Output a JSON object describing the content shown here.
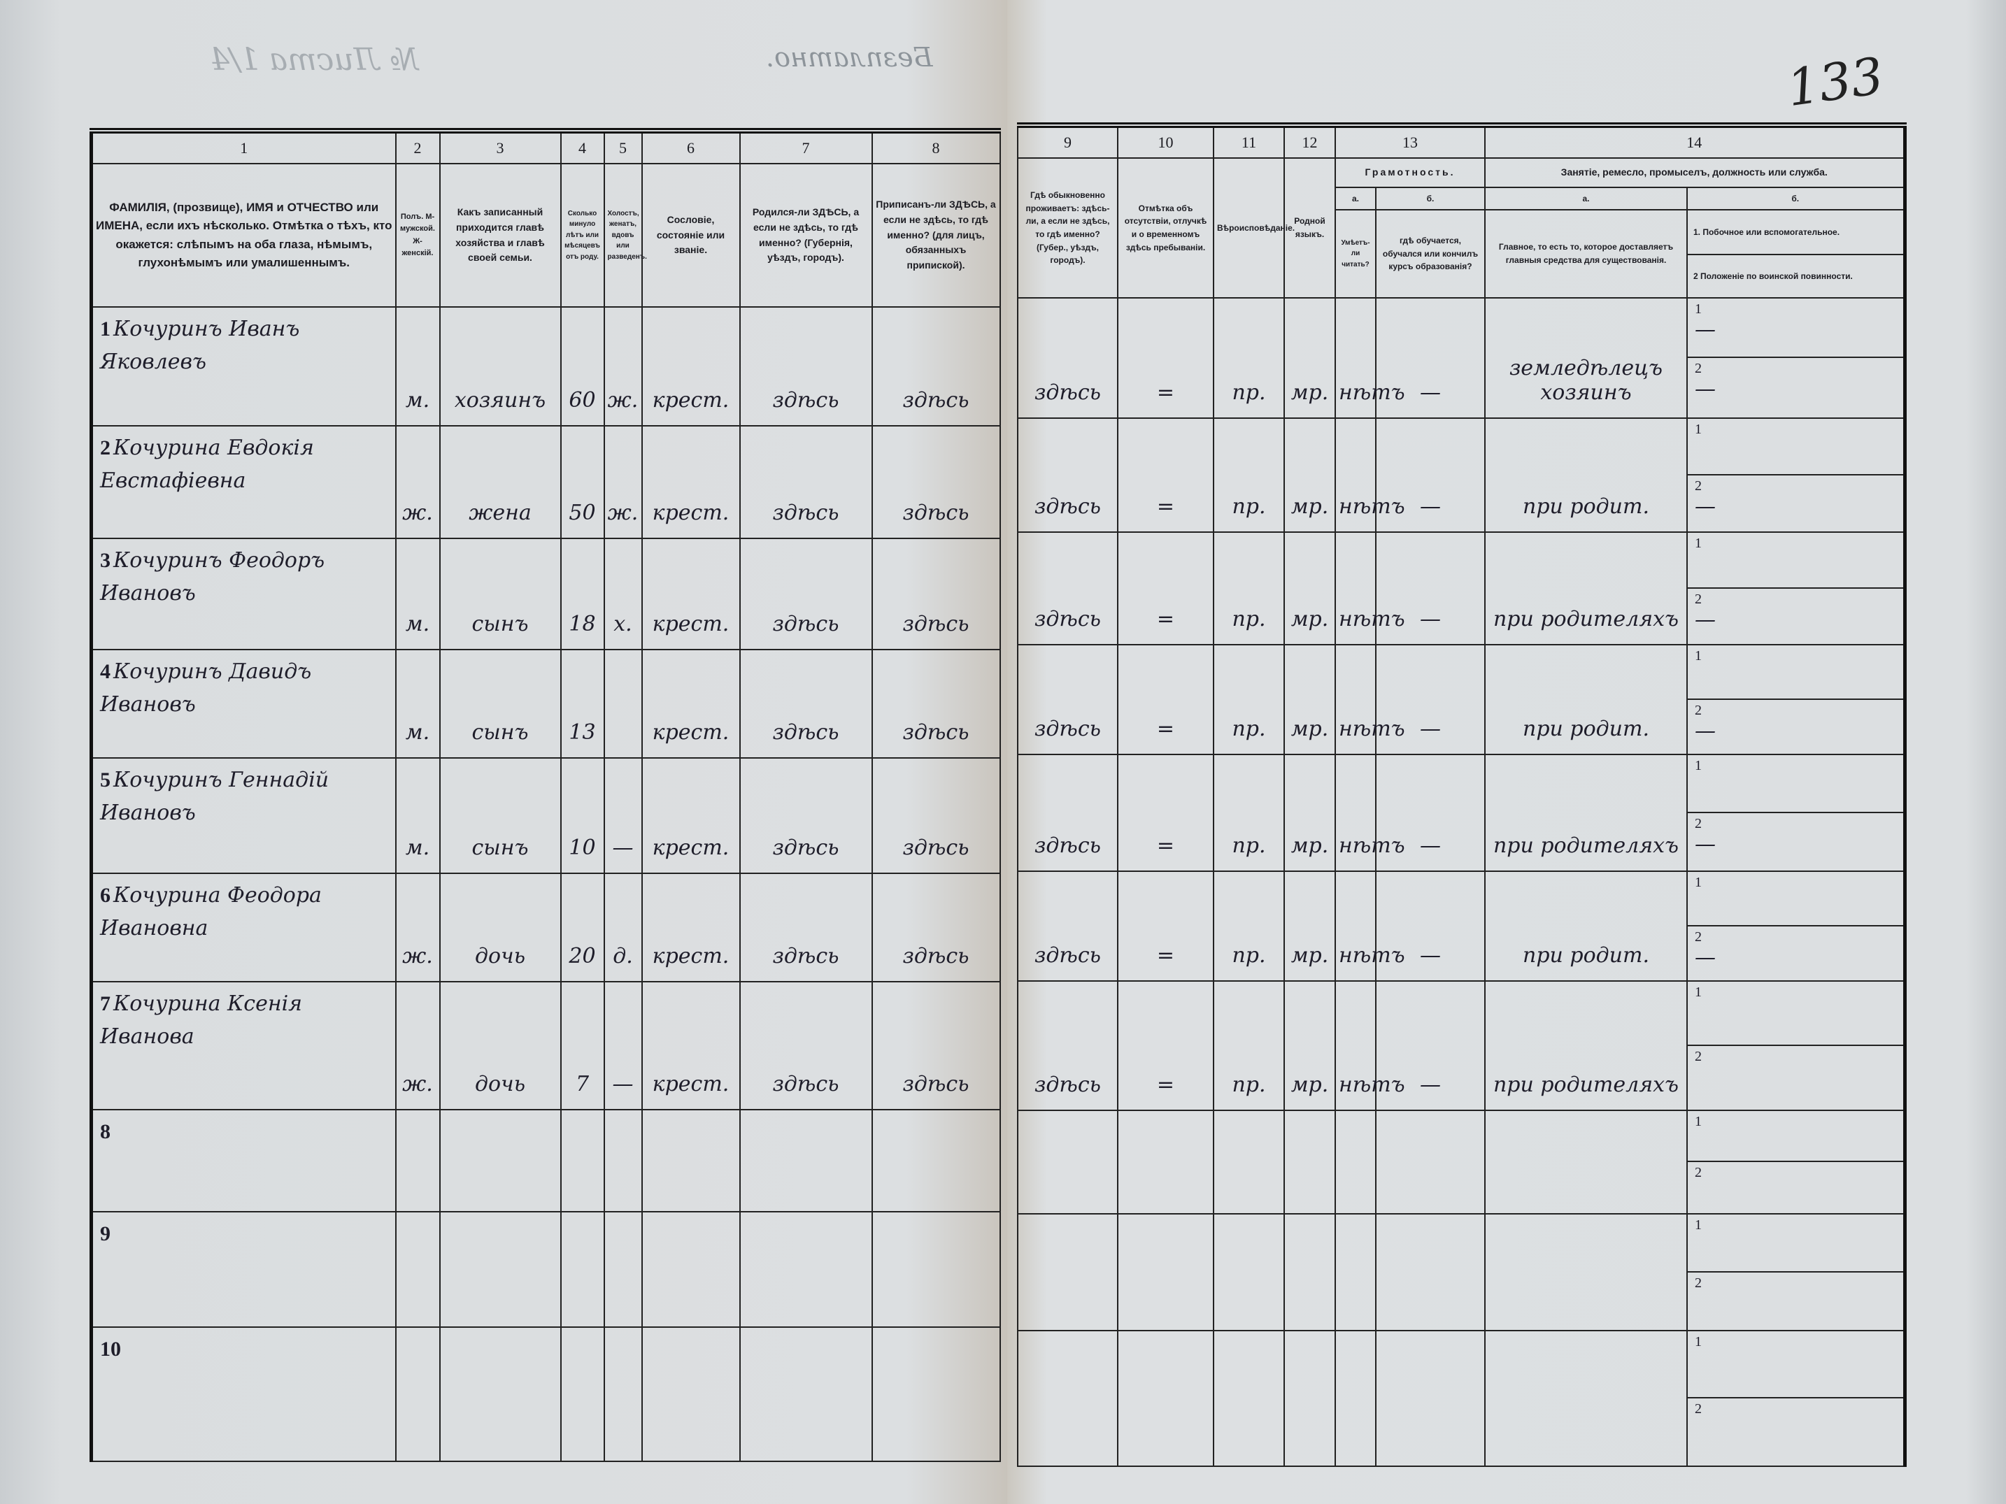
{
  "document": {
    "stamp_free": "Безплатно.",
    "sheet_no": "№ Листа 1/4",
    "folio_number": "133"
  },
  "left_header": {
    "col_numbers": [
      "1",
      "2",
      "3",
      "4",
      "5",
      "6",
      "7",
      "8"
    ],
    "col1": "ФАМИЛІЯ, (прозвище), ИМЯ и ОТЧЕСТВО или ИМЕНА, если ихъ нѣсколько. Отмѣтка о тѣхъ, кто окажется: слѣпымъ на оба глаза, нѣмымъ, глухонѣмымъ или умалишеннымъ.",
    "col2": "Полъ. М-мужской. Ж-женскій.",
    "col3": "Какъ записанный приходится главѣ хозяйства и главѣ своей семьи.",
    "col4": "Сколько минуло лѣтъ или мѣсяцевъ отъ роду.",
    "col5": "Холостъ, женатъ, вдовъ или разведенъ.",
    "col6": "Сословіе, состояніе или званіе.",
    "col7": "Родился-ли ЗДѢСЬ, а если не здѣсь, то гдѣ именно? (Губернія, уѣздъ, городъ).",
    "col8": "Приписанъ-ли ЗДѢСЬ, а если не здѣсь, то гдѣ именно? (для лицъ, обязанныхъ припиской)."
  },
  "right_header": {
    "col_numbers": [
      "9",
      "10",
      "11",
      "12",
      "13",
      "14"
    ],
    "col9": "Гдѣ обыкновенно проживаетъ: здѣсь-ли, а если не здѣсь, то гдѣ именно? (Губер., уѣздъ, городъ).",
    "col10": "Отмѣтка объ отсутствіи, отлучкѣ и о временномъ здѣсь пребываніи.",
    "col11": "Вѣроисповѣданіе.",
    "col12": "Родной языкъ.",
    "col13": "Грамотность.",
    "col13a_letter": "а.",
    "col13a": "Умѣетъ-ли читать?",
    "col13b_letter": "б.",
    "col13b": "гдѣ обучается, обучался или кончилъ курсъ образованія?",
    "col14": "Занятіе, ремесло, промыселъ, должность или служба.",
    "col14a_letter": "а.",
    "col14a": "Главное, то есть то, которое доставляетъ главныя средства для существованія.",
    "col14b_letter": "б.",
    "col14b_1": "1. Побочное или вспомогательное.",
    "col14b_2": "2 Положеніе по воинской повинности."
  },
  "rows": [
    {
      "no": "1",
      "name": "Кочуринъ Иванъ Яковлевъ",
      "sex": "м.",
      "relation": "хозяинъ",
      "age": "60",
      "marital": "ж.",
      "estate": "крест.",
      "born": "здѣсь",
      "registered": "здѣсь",
      "resides": "здѣсь",
      "absence": "=",
      "religion": "пр.",
      "language": "мр.",
      "literate": "нѣтъ",
      "education": "—",
      "occupation": "земледѣлецъ хозяинъ",
      "occ_side": "—",
      "military": "—"
    },
    {
      "no": "2",
      "name": "Кочурина Евдокія Евстафіевна",
      "sex": "ж.",
      "relation": "жена",
      "age": "50",
      "marital": "ж.",
      "estate": "крест.",
      "born": "здѣсь",
      "registered": "здѣсь",
      "resides": "здѣсь",
      "absence": "=",
      "religion": "пр.",
      "language": "мр.",
      "literate": "нѣтъ",
      "education": "—",
      "occupation": "при родит.",
      "occ_side": "",
      "military": "—"
    },
    {
      "no": "3",
      "name": "Кочуринъ Феодоръ Ивановъ",
      "sex": "м.",
      "relation": "сынъ",
      "age": "18",
      "marital": "х.",
      "estate": "крест.",
      "born": "здѣсь",
      "registered": "здѣсь",
      "resides": "здѣсь",
      "absence": "=",
      "religion": "пр.",
      "language": "мр.",
      "literate": "нѣтъ",
      "education": "—",
      "occupation": "при родителяхъ",
      "occ_side": "",
      "military": "—"
    },
    {
      "no": "4",
      "name": "Кочуринъ Давидъ Ивановъ",
      "sex": "м.",
      "relation": "сынъ",
      "age": "13",
      "marital": "",
      "estate": "крест.",
      "born": "здѣсь",
      "registered": "здѣсь",
      "resides": "здѣсь",
      "absence": "=",
      "religion": "пр.",
      "language": "мр.",
      "literate": "нѣтъ",
      "education": "—",
      "occupation": "при родит.",
      "occ_side": "",
      "military": "—"
    },
    {
      "no": "5",
      "name": "Кочуринъ Геннадій Ивановъ",
      "sex": "м.",
      "relation": "сынъ",
      "age": "10",
      "marital": "—",
      "estate": "крест.",
      "born": "здѣсь",
      "registered": "здѣсь",
      "resides": "здѣсь",
      "absence": "=",
      "religion": "пр.",
      "language": "мр.",
      "literate": "нѣтъ",
      "education": "—",
      "occupation": "при родителяхъ",
      "occ_side": "",
      "military": "—"
    },
    {
      "no": "6",
      "name": "Кочурина Феодора Ивановна",
      "sex": "ж.",
      "relation": "дочь",
      "age": "20",
      "marital": "д.",
      "estate": "крест.",
      "born": "здѣсь",
      "registered": "здѣсь",
      "resides": "здѣсь",
      "absence": "=",
      "religion": "пр.",
      "language": "мр.",
      "literate": "нѣтъ",
      "education": "—",
      "occupation": "при родит.",
      "occ_side": "",
      "military": "—"
    },
    {
      "no": "7",
      "name": "Кочурина Ксенія Иванова",
      "sex": "ж.",
      "relation": "дочь",
      "age": "7",
      "marital": "—",
      "estate": "крест.",
      "born": "здѣсь",
      "registered": "здѣсь",
      "resides": "здѣсь",
      "absence": "=",
      "religion": "пр.",
      "language": "мр.",
      "literate": "нѣтъ",
      "education": "—",
      "occupation": "при родителяхъ",
      "occ_side": "",
      "military": ""
    },
    {
      "no": "8"
    },
    {
      "no": "9"
    },
    {
      "no": "10"
    }
  ]
}
